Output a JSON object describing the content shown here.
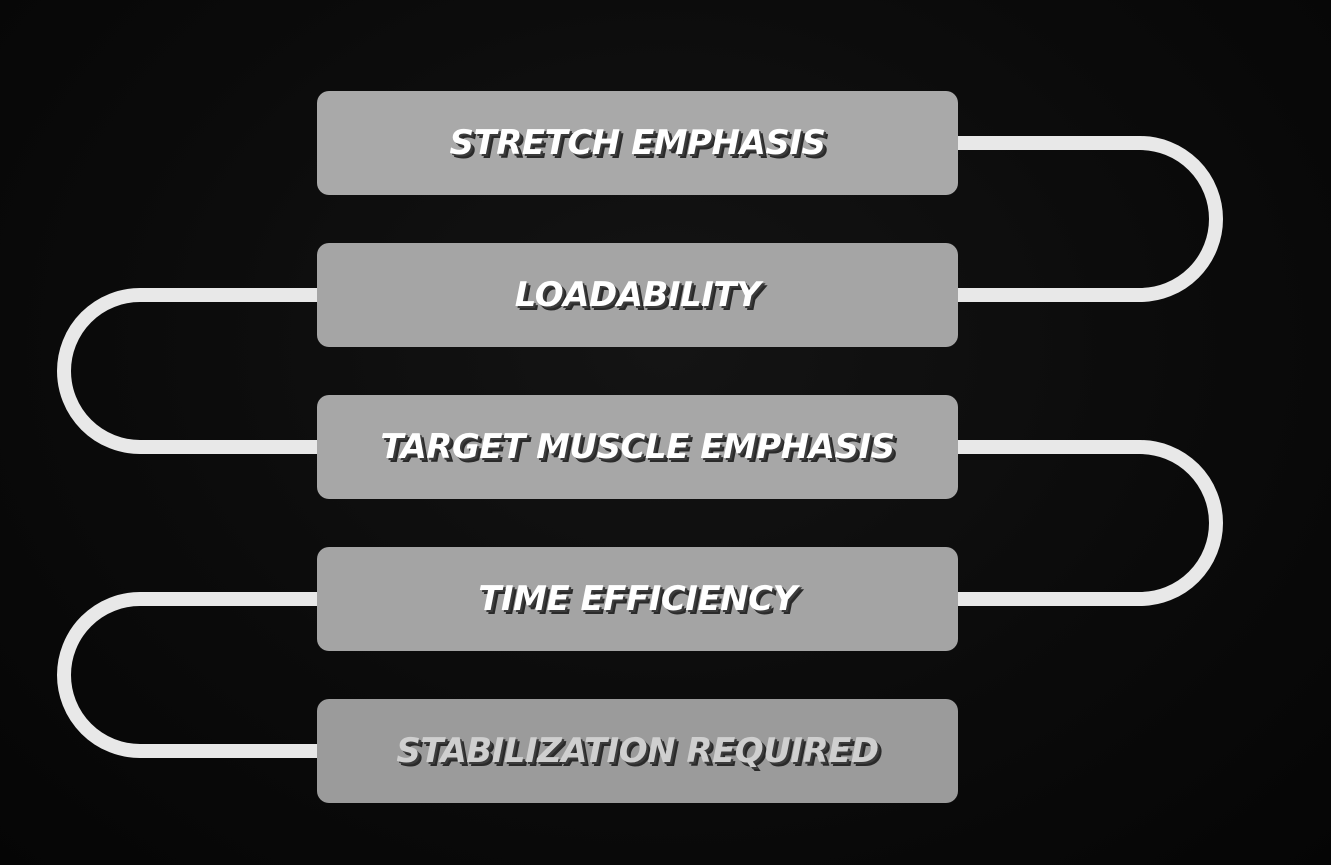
{
  "diagram": {
    "steps": [
      {
        "label": "STRETCH EMPHASIS"
      },
      {
        "label": "LOADABILITY"
      },
      {
        "label": "TARGET MUSCLE EMPHASIS"
      },
      {
        "label": "TIME EFFICIENCY"
      },
      {
        "label": "STABILIZATION REQUIRED"
      }
    ],
    "colors": {
      "background": "#0b0b0b",
      "box": "#a9a9a9",
      "connector": "#e8e8e8",
      "text": "#ffffff"
    }
  }
}
